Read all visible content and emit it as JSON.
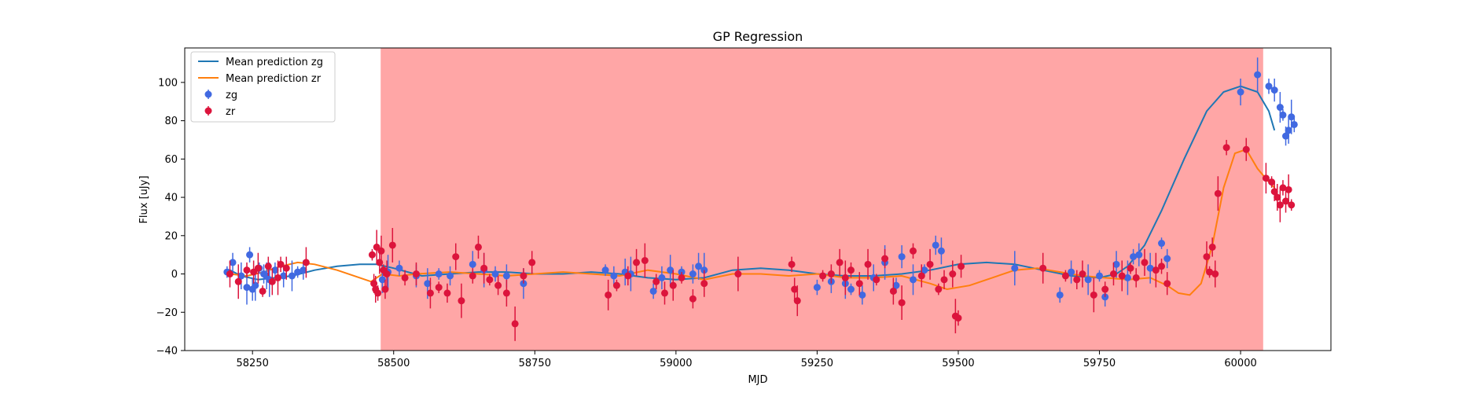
{
  "chart_data": {
    "type": "scatter",
    "title": "GP Regression",
    "xlabel": "MJD",
    "ylabel": "Flux [uJy]",
    "xlim": [
      58130,
      60160
    ],
    "ylim": [
      -40,
      118
    ],
    "xticks": [
      58250,
      58500,
      58750,
      59000,
      59250,
      59500,
      59750,
      60000
    ],
    "yticks": [
      -40,
      -20,
      0,
      20,
      40,
      60,
      80,
      100
    ],
    "shaded_region": {
      "x": [
        58477,
        60040
      ],
      "color": "#ffa6a6"
    },
    "legend_position": "upper-left",
    "grid": false,
    "colors": {
      "zg_line": "#1f77b4",
      "zr_line": "#ff7f0e",
      "zg_points": "#4169e1",
      "zr_points": "#dc143c"
    },
    "lines": [
      {
        "name": "Mean prediction zg",
        "x": [
          58210,
          58230,
          58260,
          58290,
          58320,
          58360,
          58400,
          58440,
          58470,
          58500,
          58550,
          58600,
          58650,
          58700,
          58750,
          58800,
          58850,
          58900,
          58950,
          59000,
          59050,
          59100,
          59150,
          59200,
          59250,
          59300,
          59350,
          59400,
          59450,
          59500,
          59550,
          59600,
          59650,
          59700,
          59750,
          59780,
          59800,
          59830,
          59860,
          59900,
          59940,
          59970,
          60000,
          60030,
          60050,
          60060
        ],
        "y": [
          2,
          -1,
          -3,
          -2,
          -1,
          2,
          4,
          5,
          5,
          3,
          -1,
          0,
          1,
          1,
          0,
          0,
          1,
          0,
          -2,
          -3,
          -2,
          2,
          3,
          2,
          0,
          -1,
          -1,
          0,
          2,
          5,
          6,
          5,
          2,
          -1,
          -2,
          0,
          4,
          15,
          33,
          60,
          85,
          95,
          98,
          95,
          85,
          75
        ]
      },
      {
        "name": "Mean prediction zr",
        "x": [
          58210,
          58240,
          58270,
          58300,
          58330,
          58360,
          58400,
          58440,
          58460,
          58480,
          58510,
          58540,
          58600,
          58650,
          58700,
          58750,
          58800,
          58850,
          58900,
          58950,
          59000,
          59050,
          59100,
          59150,
          59200,
          59250,
          59300,
          59350,
          59400,
          59450,
          59480,
          59520,
          59560,
          59600,
          59640,
          59680,
          59720,
          59760,
          59800,
          59840,
          59870,
          59890,
          59910,
          59930,
          59950,
          59970,
          59990,
          60010,
          60030,
          60050,
          60060
        ],
        "y": [
          0,
          -1,
          1,
          4,
          6,
          5,
          2,
          -2,
          -4,
          0,
          -1,
          0,
          1,
          0,
          -1,
          0,
          1,
          0,
          -1,
          2,
          0,
          -3,
          0,
          0,
          -1,
          0,
          -2,
          -2,
          -1,
          -5,
          -8,
          -6,
          -2,
          2,
          3,
          1,
          -1,
          -2,
          -3,
          -2,
          -6,
          -10,
          -11,
          -5,
          15,
          45,
          63,
          65,
          55,
          48,
          45
        ]
      }
    ],
    "series": [
      {
        "name": "zg",
        "points": [
          [
            58205,
            1
          ],
          [
            58215,
            6
          ],
          [
            58230,
            -1
          ],
          [
            58240,
            -7
          ],
          [
            58245,
            10
          ],
          [
            58250,
            -8
          ],
          [
            58255,
            -6
          ],
          [
            58262,
            3
          ],
          [
            58270,
            0
          ],
          [
            58275,
            -1
          ],
          [
            58280,
            -3
          ],
          [
            58290,
            2
          ],
          [
            58305,
            -1
          ],
          [
            58320,
            -1
          ],
          [
            58330,
            1
          ],
          [
            58340,
            2
          ],
          [
            58480,
            -3
          ],
          [
            58490,
            1
          ],
          [
            58510,
            3
          ],
          [
            58540,
            -1
          ],
          [
            58560,
            -5
          ],
          [
            58580,
            0
          ],
          [
            58600,
            -1
          ],
          [
            58640,
            5
          ],
          [
            58660,
            2
          ],
          [
            58680,
            0
          ],
          [
            58700,
            -1
          ],
          [
            58730,
            -5
          ],
          [
            58875,
            2
          ],
          [
            58890,
            -1
          ],
          [
            58910,
            1
          ],
          [
            58920,
            0
          ],
          [
            58960,
            -9
          ],
          [
            58975,
            -2
          ],
          [
            58990,
            2
          ],
          [
            59010,
            1
          ],
          [
            59030,
            0
          ],
          [
            59040,
            4
          ],
          [
            59050,
            2
          ],
          [
            59250,
            -7
          ],
          [
            59275,
            -4
          ],
          [
            59300,
            -5
          ],
          [
            59310,
            -8
          ],
          [
            59330,
            -11
          ],
          [
            59350,
            -2
          ],
          [
            59370,
            6
          ],
          [
            59390,
            -6
          ],
          [
            59400,
            9
          ],
          [
            59420,
            -3
          ],
          [
            59440,
            2
          ],
          [
            59460,
            15
          ],
          [
            59470,
            12
          ],
          [
            59600,
            3
          ],
          [
            59680,
            -11
          ],
          [
            59700,
            1
          ],
          [
            59730,
            -3
          ],
          [
            59750,
            -1
          ],
          [
            59760,
            -12
          ],
          [
            59780,
            5
          ],
          [
            59800,
            -2
          ],
          [
            59810,
            9
          ],
          [
            59820,
            10
          ],
          [
            59840,
            3
          ],
          [
            59860,
            16
          ],
          [
            59870,
            8
          ],
          [
            60000,
            95
          ],
          [
            60030,
            104
          ],
          [
            60050,
            98
          ],
          [
            60060,
            96
          ],
          [
            60070,
            87
          ],
          [
            60075,
            83
          ],
          [
            60080,
            72
          ],
          [
            60085,
            75
          ],
          [
            60090,
            82
          ],
          [
            60095,
            78
          ]
        ]
      },
      {
        "name": "zr",
        "points": [
          [
            58210,
            0
          ],
          [
            58225,
            -4
          ],
          [
            58240,
            2
          ],
          [
            58252,
            1
          ],
          [
            58260,
            3
          ],
          [
            58268,
            -9
          ],
          [
            58278,
            4
          ],
          [
            58285,
            -4
          ],
          [
            58295,
            -2
          ],
          [
            58300,
            5
          ],
          [
            58310,
            3
          ],
          [
            58345,
            6
          ],
          [
            58462,
            10
          ],
          [
            58465,
            -5
          ],
          [
            58468,
            -8
          ],
          [
            58470,
            14
          ],
          [
            58472,
            -10
          ],
          [
            58475,
            6
          ],
          [
            58478,
            12
          ],
          [
            58482,
            2
          ],
          [
            58485,
            -8
          ],
          [
            58488,
            0
          ],
          [
            58498,
            15
          ],
          [
            58520,
            -2
          ],
          [
            58540,
            0
          ],
          [
            58565,
            -10
          ],
          [
            58580,
            -7
          ],
          [
            58595,
            -10
          ],
          [
            58610,
            9
          ],
          [
            58620,
            -14
          ],
          [
            58640,
            -1
          ],
          [
            58650,
            14
          ],
          [
            58660,
            3
          ],
          [
            58670,
            -3
          ],
          [
            58685,
            -6
          ],
          [
            58700,
            -10
          ],
          [
            58715,
            -26
          ],
          [
            58730,
            -1
          ],
          [
            58745,
            6
          ],
          [
            58880,
            -11
          ],
          [
            58895,
            -6
          ],
          [
            58915,
            -1
          ],
          [
            58930,
            6
          ],
          [
            58945,
            7
          ],
          [
            58965,
            -4
          ],
          [
            58980,
            -10
          ],
          [
            58995,
            -6
          ],
          [
            59010,
            -2
          ],
          [
            59030,
            -13
          ],
          [
            59050,
            -5
          ],
          [
            59110,
            0
          ],
          [
            59205,
            5
          ],
          [
            59210,
            -8
          ],
          [
            59215,
            -14
          ],
          [
            59260,
            -1
          ],
          [
            59275,
            0
          ],
          [
            59290,
            6
          ],
          [
            59300,
            -2
          ],
          [
            59310,
            2
          ],
          [
            59325,
            -5
          ],
          [
            59340,
            5
          ],
          [
            59355,
            -3
          ],
          [
            59370,
            8
          ],
          [
            59385,
            -9
          ],
          [
            59400,
            -15
          ],
          [
            59420,
            12
          ],
          [
            59435,
            -1
          ],
          [
            59450,
            5
          ],
          [
            59465,
            -8
          ],
          [
            59475,
            -3
          ],
          [
            59490,
            0
          ],
          [
            59495,
            -22
          ],
          [
            59500,
            -23
          ],
          [
            59505,
            4
          ],
          [
            59650,
            3
          ],
          [
            59690,
            -1
          ],
          [
            59710,
            -3
          ],
          [
            59720,
            0
          ],
          [
            59740,
            -11
          ],
          [
            59760,
            -8
          ],
          [
            59775,
            0
          ],
          [
            59790,
            -1
          ],
          [
            59805,
            3
          ],
          [
            59815,
            -2
          ],
          [
            59830,
            6
          ],
          [
            59850,
            2
          ],
          [
            59860,
            4
          ],
          [
            59870,
            -5
          ],
          [
            59940,
            9
          ],
          [
            59945,
            1
          ],
          [
            59950,
            14
          ],
          [
            59955,
            0
          ],
          [
            59960,
            42
          ],
          [
            59975,
            66
          ],
          [
            60010,
            65
          ],
          [
            60045,
            50
          ],
          [
            60055,
            48
          ],
          [
            60060,
            43
          ],
          [
            60065,
            40
          ],
          [
            60070,
            36
          ],
          [
            60075,
            45
          ],
          [
            60080,
            38
          ],
          [
            60085,
            44
          ],
          [
            60090,
            36
          ]
        ]
      }
    ]
  }
}
